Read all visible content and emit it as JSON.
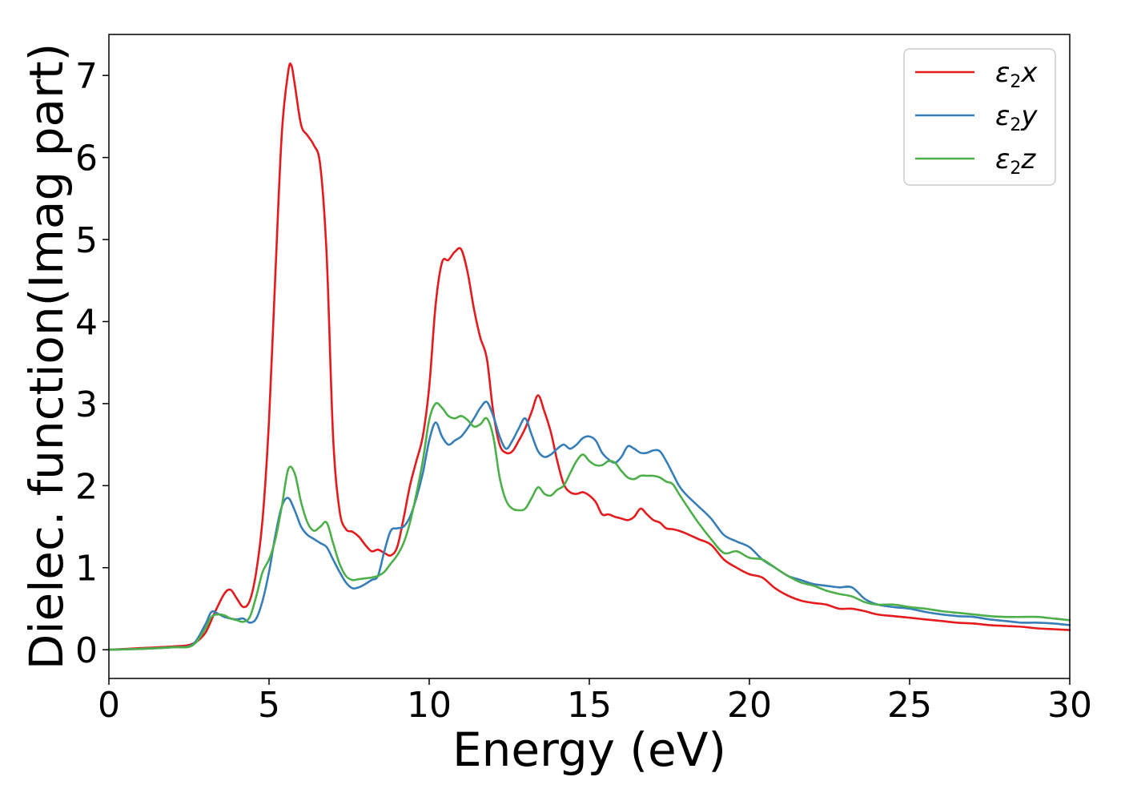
{
  "chart_data": {
    "type": "line",
    "xlabel": "Energy (eV)",
    "ylabel": "Dielec. function(Imag part)",
    "xlim": [
      0,
      30
    ],
    "ylim": [
      -0.35,
      7.5
    ],
    "xticks": [
      0,
      5,
      10,
      15,
      20,
      25,
      30
    ],
    "yticks": [
      0,
      1,
      2,
      3,
      4,
      5,
      6,
      7
    ],
    "grid": false,
    "legend": "top-right",
    "series": [
      {
        "name": "ε2x",
        "symbol": "ε",
        "sub": "2",
        "suffix": "x",
        "color": "#e41a1c",
        "x": [
          0,
          1,
          2,
          2.6,
          3.0,
          3.3,
          3.6,
          3.8,
          4.0,
          4.2,
          4.4,
          4.6,
          4.8,
          5.0,
          5.2,
          5.4,
          5.6,
          5.7,
          5.8,
          6.0,
          6.2,
          6.4,
          6.6,
          6.8,
          7.0,
          7.2,
          7.4,
          7.6,
          7.8,
          8.0,
          8.2,
          8.4,
          8.6,
          8.8,
          9.0,
          9.2,
          9.4,
          9.6,
          9.8,
          10.0,
          10.2,
          10.4,
          10.6,
          10.8,
          11.0,
          11.2,
          11.4,
          11.6,
          11.8,
          12.0,
          12.2,
          12.4,
          12.6,
          12.8,
          13.0,
          13.2,
          13.4,
          13.6,
          13.8,
          14.0,
          14.2,
          14.4,
          14.6,
          14.8,
          15.0,
          15.2,
          15.4,
          15.6,
          15.8,
          16.0,
          16.2,
          16.4,
          16.6,
          16.8,
          17.0,
          17.2,
          17.4,
          17.6,
          17.8,
          18.0,
          18.4,
          18.8,
          19.2,
          19.6,
          20.0,
          20.4,
          20.8,
          21.2,
          21.6,
          22.0,
          22.4,
          22.8,
          23.2,
          23.6,
          24.0,
          24.5,
          25.0,
          25.5,
          26.0,
          26.5,
          27.0,
          27.5,
          28.0,
          28.5,
          29.0,
          29.5,
          30.0
        ],
        "y": [
          0.0,
          0.02,
          0.04,
          0.07,
          0.2,
          0.45,
          0.68,
          0.73,
          0.62,
          0.52,
          0.6,
          0.95,
          1.6,
          2.8,
          4.6,
          6.3,
          7.05,
          7.12,
          6.9,
          6.4,
          6.27,
          6.15,
          5.9,
          4.8,
          2.6,
          1.7,
          1.47,
          1.44,
          1.38,
          1.28,
          1.2,
          1.22,
          1.18,
          1.15,
          1.25,
          1.6,
          2.0,
          2.3,
          2.6,
          3.2,
          4.2,
          4.72,
          4.75,
          4.85,
          4.88,
          4.6,
          4.15,
          3.8,
          3.55,
          2.9,
          2.5,
          2.4,
          2.42,
          2.55,
          2.7,
          2.9,
          3.1,
          2.9,
          2.65,
          2.3,
          2.02,
          1.92,
          1.9,
          1.92,
          1.88,
          1.8,
          1.65,
          1.65,
          1.62,
          1.6,
          1.58,
          1.62,
          1.72,
          1.65,
          1.58,
          1.55,
          1.48,
          1.47,
          1.45,
          1.42,
          1.35,
          1.28,
          1.1,
          1.0,
          0.92,
          0.88,
          0.75,
          0.66,
          0.6,
          0.57,
          0.55,
          0.5,
          0.5,
          0.47,
          0.43,
          0.41,
          0.39,
          0.37,
          0.35,
          0.33,
          0.32,
          0.3,
          0.29,
          0.28,
          0.26,
          0.25,
          0.24
        ]
      },
      {
        "name": "ε2y",
        "symbol": "ε",
        "sub": "2",
        "suffix": "y",
        "color": "#377eb8",
        "x": [
          0,
          1,
          2,
          2.6,
          3.0,
          3.2,
          3.4,
          3.6,
          3.8,
          4.0,
          4.2,
          4.4,
          4.6,
          4.8,
          5.0,
          5.2,
          5.4,
          5.6,
          5.8,
          6.0,
          6.2,
          6.4,
          6.6,
          6.8,
          7.0,
          7.2,
          7.4,
          7.6,
          7.8,
          8.0,
          8.2,
          8.4,
          8.6,
          8.8,
          9.0,
          9.2,
          9.4,
          9.6,
          9.8,
          10.0,
          10.2,
          10.4,
          10.6,
          10.8,
          11.0,
          11.2,
          11.4,
          11.6,
          11.8,
          12.0,
          12.2,
          12.4,
          12.6,
          12.8,
          13.0,
          13.2,
          13.4,
          13.6,
          13.8,
          14.0,
          14.2,
          14.4,
          14.6,
          14.8,
          15.0,
          15.2,
          15.4,
          15.6,
          15.8,
          16.0,
          16.2,
          16.4,
          16.6,
          16.8,
          17.0,
          17.2,
          17.4,
          17.6,
          17.8,
          18.0,
          18.4,
          18.8,
          19.2,
          19.6,
          20.0,
          20.4,
          20.8,
          21.2,
          21.6,
          22.0,
          22.4,
          22.8,
          23.2,
          23.6,
          24.0,
          24.5,
          25.0,
          25.5,
          26.0,
          26.5,
          27.0,
          27.5,
          28.0,
          28.5,
          29.0,
          29.5,
          30.0
        ],
        "y": [
          0.0,
          0.01,
          0.03,
          0.06,
          0.3,
          0.46,
          0.44,
          0.4,
          0.38,
          0.37,
          0.38,
          0.33,
          0.38,
          0.6,
          0.95,
          1.4,
          1.75,
          1.85,
          1.7,
          1.5,
          1.4,
          1.35,
          1.3,
          1.25,
          1.1,
          0.95,
          0.82,
          0.75,
          0.76,
          0.8,
          0.85,
          0.9,
          1.2,
          1.45,
          1.48,
          1.5,
          1.62,
          1.85,
          2.15,
          2.55,
          2.77,
          2.6,
          2.5,
          2.55,
          2.6,
          2.7,
          2.82,
          2.95,
          3.02,
          2.85,
          2.6,
          2.45,
          2.55,
          2.7,
          2.82,
          2.62,
          2.42,
          2.35,
          2.38,
          2.45,
          2.5,
          2.45,
          2.5,
          2.58,
          2.6,
          2.55,
          2.4,
          2.32,
          2.28,
          2.35,
          2.48,
          2.45,
          2.4,
          2.4,
          2.43,
          2.42,
          2.3,
          2.15,
          2.0,
          1.9,
          1.75,
          1.6,
          1.4,
          1.32,
          1.25,
          1.1,
          1.0,
          0.9,
          0.85,
          0.8,
          0.78,
          0.76,
          0.76,
          0.62,
          0.55,
          0.52,
          0.5,
          0.46,
          0.43,
          0.41,
          0.4,
          0.37,
          0.35,
          0.33,
          0.33,
          0.32,
          0.3
        ]
      },
      {
        "name": "ε2z",
        "symbol": "ε",
        "sub": "2",
        "suffix": "z",
        "color": "#4daf4a",
        "x": [
          0,
          1,
          2,
          2.6,
          3.0,
          3.2,
          3.4,
          3.6,
          3.8,
          4.0,
          4.2,
          4.4,
          4.6,
          4.8,
          5.0,
          5.2,
          5.4,
          5.6,
          5.8,
          6.0,
          6.2,
          6.4,
          6.6,
          6.8,
          7.0,
          7.2,
          7.4,
          7.6,
          7.8,
          8.0,
          8.2,
          8.4,
          8.6,
          8.8,
          9.0,
          9.2,
          9.4,
          9.6,
          9.8,
          10.0,
          10.2,
          10.4,
          10.6,
          10.8,
          11.0,
          11.2,
          11.4,
          11.6,
          11.8,
          12.0,
          12.2,
          12.4,
          12.6,
          12.8,
          13.0,
          13.2,
          13.4,
          13.6,
          13.8,
          14.0,
          14.2,
          14.4,
          14.6,
          14.8,
          15.0,
          15.2,
          15.4,
          15.6,
          15.8,
          16.0,
          16.2,
          16.4,
          16.6,
          16.8,
          17.0,
          17.2,
          17.4,
          17.6,
          17.8,
          18.0,
          18.4,
          18.8,
          19.2,
          19.6,
          20.0,
          20.4,
          20.8,
          21.2,
          21.6,
          22.0,
          22.4,
          22.8,
          23.2,
          23.6,
          24.0,
          24.5,
          25.0,
          25.5,
          26.0,
          26.5,
          27.0,
          27.5,
          28.0,
          28.5,
          29.0,
          29.5,
          30.0
        ],
        "y": [
          0.0,
          0.01,
          0.03,
          0.05,
          0.25,
          0.4,
          0.43,
          0.42,
          0.38,
          0.36,
          0.34,
          0.4,
          0.65,
          0.95,
          1.1,
          1.35,
          1.75,
          2.2,
          2.15,
          1.8,
          1.55,
          1.45,
          1.5,
          1.55,
          1.3,
          1.05,
          0.9,
          0.85,
          0.86,
          0.87,
          0.88,
          0.9,
          0.95,
          1.05,
          1.15,
          1.3,
          1.55,
          1.9,
          2.3,
          2.8,
          3.0,
          2.95,
          2.85,
          2.82,
          2.85,
          2.8,
          2.72,
          2.75,
          2.82,
          2.6,
          2.1,
          1.82,
          1.72,
          1.7,
          1.72,
          1.85,
          1.98,
          1.9,
          1.88,
          1.95,
          2.0,
          2.15,
          2.3,
          2.38,
          2.3,
          2.25,
          2.25,
          2.3,
          2.28,
          2.18,
          2.1,
          2.08,
          2.12,
          2.12,
          2.12,
          2.1,
          2.05,
          2.02,
          1.9,
          1.78,
          1.55,
          1.35,
          1.18,
          1.2,
          1.12,
          1.1,
          1.0,
          0.9,
          0.82,
          0.78,
          0.72,
          0.68,
          0.65,
          0.58,
          0.55,
          0.55,
          0.52,
          0.5,
          0.47,
          0.45,
          0.43,
          0.41,
          0.4,
          0.4,
          0.4,
          0.38,
          0.36
        ]
      }
    ]
  }
}
